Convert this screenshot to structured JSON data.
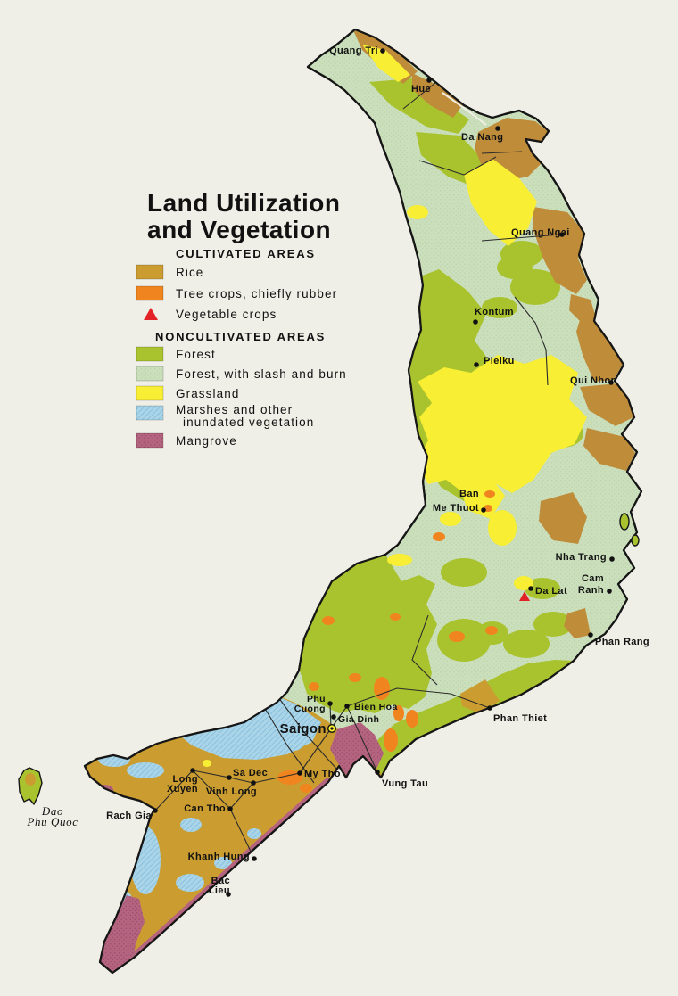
{
  "title": {
    "line1": "Land Utilization",
    "line2": "and Vegetation"
  },
  "legend": {
    "cultivated_header": "CULTIVATED AREAS",
    "rice": "Rice",
    "tree_crops": "Tree crops, chiefly rubber",
    "vegetable": "Vegetable crops",
    "noncultivated_header": "NONCULTIVATED AREAS",
    "forest": "Forest",
    "slash_burn": "Forest, with slash and burn",
    "grassland": "Grassland",
    "marshes_line1": "Marshes and other",
    "marshes_line2": "inundated vegetation",
    "mangrove": "Mangrove"
  },
  "colors": {
    "paper": "#f0efe7",
    "rice": "#cb9d30",
    "rice2": "#bf8c3a",
    "tree": "#f0851f",
    "veg": "#e32227",
    "forest": "#a9c32e",
    "slash": "#cbdfbd",
    "slashdot": "#b9d3a6",
    "grass": "#f8ee33",
    "marsh": "#aad5e9",
    "marshline": "#85c0dd",
    "mangrove": "#b4647e",
    "mangrovedot": "#97496a",
    "line": "#161616"
  },
  "map": {
    "cities": [
      {
        "name": "Quang Tri",
        "lines": [
          "Quang Tri"
        ],
        "dot": [
          429,
          57
        ],
        "label": [
          424,
          60
        ],
        "anchor": "end",
        "size": 11
      },
      {
        "name": "Hue",
        "lines": [
          "Hue"
        ],
        "dot": [
          481,
          90
        ],
        "label": [
          461,
          103
        ],
        "anchor": "start",
        "size": 11
      },
      {
        "name": "Da Nang",
        "lines": [
          "Da Nang"
        ],
        "dot": [
          558,
          144
        ],
        "label": [
          517,
          157
        ],
        "anchor": "start",
        "size": 11
      },
      {
        "name": "Quang Ngai",
        "lines": [
          "Quang Ngai"
        ],
        "dot": [
          630,
          263
        ],
        "label": [
          573,
          264
        ],
        "anchor": "start",
        "size": 11
      },
      {
        "name": "Kontum",
        "lines": [
          "Kontum"
        ],
        "dot": [
          533,
          361
        ],
        "label": [
          532,
          353
        ],
        "anchor": "start",
        "size": 11
      },
      {
        "name": "Pleiku",
        "lines": [
          "Pleiku"
        ],
        "dot": [
          534,
          409
        ],
        "label": [
          542,
          408
        ],
        "anchor": "start",
        "size": 11
      },
      {
        "name": "Qui Nhon",
        "lines": [
          "Qui Nhon"
        ],
        "dot": [
          685,
          429
        ],
        "label": [
          639,
          430
        ],
        "anchor": "start",
        "size": 11
      },
      {
        "name": "Ban Me Thuot",
        "lines": [
          "Ban",
          "Me Thuot"
        ],
        "dot": [
          542,
          572
        ],
        "label": [
          537,
          557
        ],
        "anchor": "end",
        "lh": 16,
        "size": 11
      },
      {
        "name": "Nha Trang",
        "lines": [
          "Nha Trang"
        ],
        "dot": [
          686,
          627
        ],
        "label": [
          680,
          628
        ],
        "anchor": "end",
        "size": 11
      },
      {
        "name": "Cam Ranh",
        "lines": [
          "Cam",
          "Ranh"
        ],
        "dot": [
          683,
          663
        ],
        "label": [
          677,
          652
        ],
        "anchor": "end",
        "lh": 13,
        "size": 11
      },
      {
        "name": "Da Lat",
        "lines": [
          "Da Lat"
        ],
        "dot": [
          595,
          660
        ],
        "triangle": [
          588,
          668
        ],
        "label": [
          600,
          666
        ],
        "anchor": "start",
        "size": 11
      },
      {
        "name": "Phan Rang",
        "lines": [
          "Phan Rang"
        ],
        "dot": [
          662,
          712
        ],
        "label": [
          667,
          723
        ],
        "anchor": "start",
        "size": 11
      },
      {
        "name": "Phan Thiet",
        "lines": [
          "Phan Thiet"
        ],
        "dot": [
          549,
          794
        ],
        "label": [
          553,
          809
        ],
        "anchor": "start",
        "size": 11
      },
      {
        "name": "Phu Cuong",
        "lines": [
          "Phu",
          "Cuong"
        ],
        "dot": [
          370,
          789
        ],
        "label": [
          365,
          787
        ],
        "anchor": "end",
        "lh": 11,
        "size": 10.5
      },
      {
        "name": "Bien Hoa",
        "lines": [
          "Bien Hoa"
        ],
        "dot": [
          389,
          792
        ],
        "label": [
          397,
          796
        ],
        "anchor": "start",
        "size": 10.5
      },
      {
        "name": "Gia Dinh",
        "lines": [
          "Gia Dinh"
        ],
        "dot": [
          374,
          804
        ],
        "label": [
          379,
          810
        ],
        "anchor": "start",
        "size": 10.5
      },
      {
        "name": "Saigon",
        "lines": [
          "Saigon"
        ],
        "capital": [
          372,
          817
        ],
        "label": [
          366,
          822
        ],
        "anchor": "end",
        "size": 15
      },
      {
        "name": "My Tho",
        "lines": [
          "My Tho"
        ],
        "dot": [
          336,
          867
        ],
        "label": [
          341,
          871
        ],
        "anchor": "start",
        "size": 11
      },
      {
        "name": "Vung Tau",
        "lines": [
          "Vung Tau"
        ],
        "dot": [
          423,
          866
        ],
        "label": [
          428,
          882
        ],
        "anchor": "start",
        "size": 11
      },
      {
        "name": "Long Xuyen",
        "lines": [
          "Long",
          "Xuyen"
        ],
        "dot": [
          216,
          864
        ],
        "label": [
          222,
          877
        ],
        "anchor": "end",
        "lh": 11,
        "size": 11
      },
      {
        "name": "Sa Dec",
        "lines": [
          "Sa Dec"
        ],
        "dot": [
          257,
          872
        ],
        "label": [
          261,
          870
        ],
        "anchor": "start",
        "size": 11
      },
      {
        "name": "Vinh Long",
        "lines": [
          "Vinh Long"
        ],
        "dot": [
          284,
          878
        ],
        "label": [
          288,
          891
        ],
        "anchor": "end",
        "size": 11
      },
      {
        "name": "Can Tho",
        "lines": [
          "Can Tho"
        ],
        "dot": [
          258,
          907
        ],
        "label": [
          253,
          910
        ],
        "anchor": "end",
        "size": 11
      },
      {
        "name": "Rach Gia",
        "lines": [
          "Rach Gia"
        ],
        "dot": [
          174,
          909
        ],
        "label": [
          170,
          918
        ],
        "anchor": "end",
        "size": 11
      },
      {
        "name": "Khanh Hung",
        "lines": [
          "Khanh Hung"
        ],
        "dot": [
          285,
          963
        ],
        "label": [
          280,
          964
        ],
        "anchor": "end",
        "size": 11
      },
      {
        "name": "Bac Lieu",
        "lines": [
          "Bac",
          "Lieu"
        ],
        "dot": [
          256,
          1003
        ],
        "label": [
          258,
          991
        ],
        "anchor": "end",
        "lh": 11,
        "size": 11
      },
      {
        "name": "Dao Phu Quoc",
        "lines": [
          "Dao",
          "Phu Quoc"
        ],
        "label": [
          59,
          914
        ],
        "anchor": "middle",
        "lh": 12,
        "size": 13,
        "italic": true
      }
    ]
  }
}
